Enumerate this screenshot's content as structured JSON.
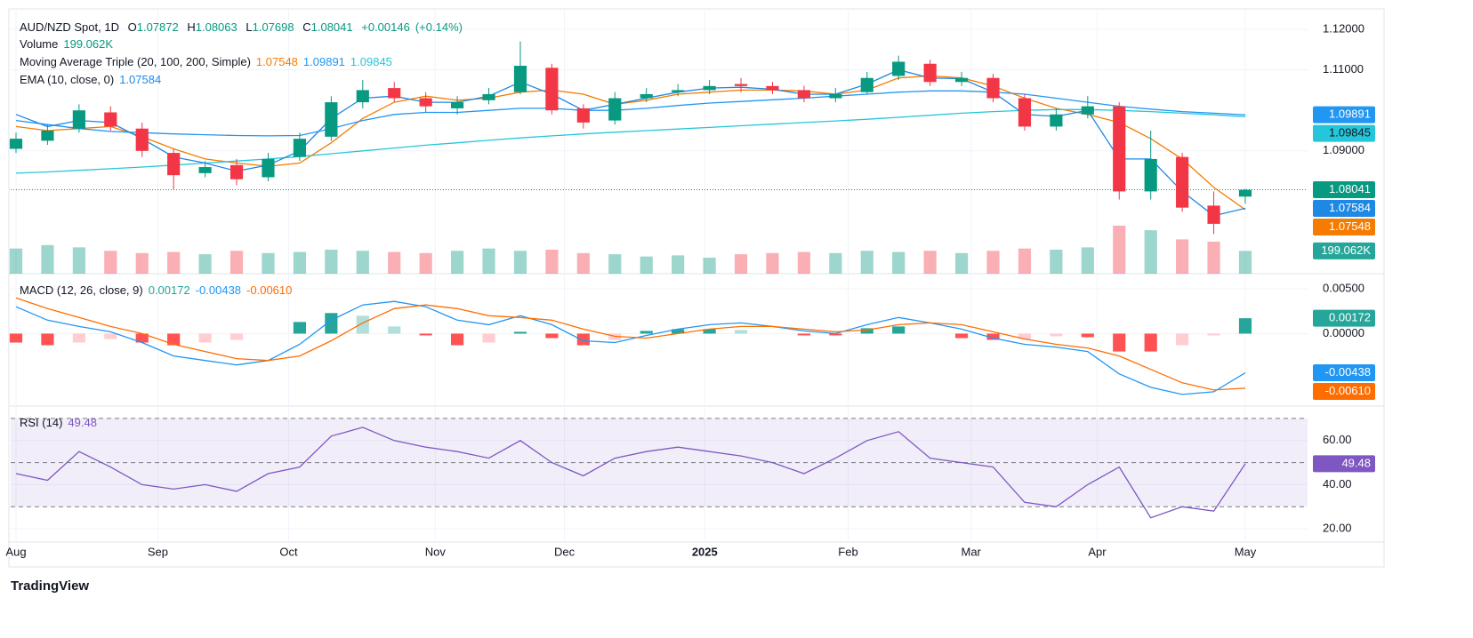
{
  "chart_data": {
    "type": "candlestick",
    "symbol": "AUD/NZD Spot, 1D",
    "ohlc_prefixes": {
      "open": "O",
      "high": "H",
      "low": "L",
      "close": "C"
    },
    "change": {
      "value": 0.00146,
      "label": "+0.00146"
    },
    "change_pct": {
      "value": 0.14,
      "label": "(+0.14%)"
    },
    "up_color": "#089981",
    "down_color": "#f23645",
    "candles": {
      "open": [
        1.0905,
        1.0925,
        1.0955,
        1.0995,
        1.0955,
        1.0895,
        1.0845,
        1.0865,
        1.0835,
        1.0885,
        1.0935,
        1.102,
        1.1055,
        1.103,
        1.1005,
        1.1025,
        1.1045,
        1.1105,
        1.1005,
        1.0975,
        1.103,
        1.1045,
        1.105,
        1.1065,
        1.106,
        1.105,
        1.103,
        1.1045,
        1.1085,
        1.1115,
        1.107,
        1.108,
        1.103,
        1.096,
        1.099,
        1.101,
        1.08,
        1.0885,
        1.0765,
        1.07872
      ],
      "high": [
        1.0945,
        1.0965,
        1.1015,
        1.101,
        1.097,
        1.0905,
        1.0875,
        1.088,
        1.0895,
        1.0945,
        1.1035,
        1.1075,
        1.107,
        1.1045,
        1.1035,
        1.1055,
        1.117,
        1.1115,
        1.1015,
        1.1045,
        1.1055,
        1.1065,
        1.1075,
        1.108,
        1.107,
        1.106,
        1.1055,
        1.1095,
        1.1135,
        1.1125,
        1.1095,
        1.109,
        1.104,
        1.1005,
        1.1035,
        1.102,
        1.095,
        1.0895,
        1.08,
        1.08063
      ],
      "low": [
        1.0895,
        1.0915,
        1.0945,
        1.095,
        1.0885,
        1.0805,
        1.0835,
        1.0815,
        1.0825,
        1.0875,
        1.0925,
        1.1005,
        1.102,
        1.0995,
        1.099,
        1.1015,
        1.104,
        1.099,
        1.0955,
        1.0965,
        1.102,
        1.1035,
        1.104,
        1.1045,
        1.104,
        1.102,
        1.102,
        1.104,
        1.1075,
        1.106,
        1.106,
        1.102,
        1.095,
        1.095,
        1.098,
        1.078,
        1.078,
        1.075,
        1.0695,
        1.07698
      ],
      "close": [
        1.093,
        1.095,
        1.1,
        1.096,
        1.09,
        1.084,
        1.086,
        1.083,
        1.088,
        1.093,
        1.102,
        1.105,
        1.103,
        1.101,
        1.102,
        1.104,
        1.111,
        1.1,
        1.097,
        1.103,
        1.104,
        1.105,
        1.106,
        1.106,
        1.105,
        1.103,
        1.104,
        1.108,
        1.112,
        1.107,
        1.108,
        1.103,
        1.096,
        1.099,
        1.101,
        1.08,
        1.088,
        1.076,
        1.072,
        1.08041
      ]
    },
    "ylim": [
      1.0597,
      1.1246
    ],
    "yticks": [
      {
        "value": 1.12,
        "label": "1.12000"
      },
      {
        "value": 1.11,
        "label": "1.11000"
      },
      {
        "value": 1.09,
        "label": "1.09000"
      }
    ],
    "xticks": [
      {
        "value": 0,
        "label": "Aug"
      },
      {
        "value": 4.5,
        "label": "Sep"
      },
      {
        "value": 8.65,
        "label": "Oct"
      },
      {
        "value": 13.3,
        "label": "Nov"
      },
      {
        "value": 17.4,
        "label": "Dec"
      },
      {
        "value": 21.85,
        "label": "2025",
        "bold": true
      },
      {
        "value": 26.4,
        "label": "Feb"
      },
      {
        "value": 30.3,
        "label": "Mar"
      },
      {
        "value": 34.3,
        "label": "Apr"
      },
      {
        "value": 39,
        "label": "May"
      }
    ],
    "grid": true,
    "volume": {
      "name": "Volume",
      "color": "#26a69a",
      "last_label": "199.062K",
      "vlim": [
        0,
        2300000
      ],
      "values": [
        220000,
        250000,
        230000,
        200000,
        180000,
        190000,
        170000,
        200000,
        180000,
        190000,
        210000,
        200000,
        190000,
        180000,
        200000,
        220000,
        200000,
        210000,
        180000,
        170000,
        150000,
        160000,
        140000,
        170000,
        180000,
        190000,
        180000,
        200000,
        190000,
        200000,
        180000,
        200000,
        220000,
        210000,
        230000,
        420000,
        380000,
        300000,
        280000,
        199062
      ]
    },
    "ma": {
      "name": "Moving Average Triple (20, 100, 200, Simple)",
      "series": [
        {
          "color": "#f57c00",
          "values": [
            1.096,
            1.095,
            1.0955,
            1.096,
            1.0935,
            1.0905,
            1.088,
            1.087,
            1.0862,
            1.087,
            1.092,
            1.098,
            1.102,
            1.1035,
            1.1025,
            1.103,
            1.1045,
            1.105,
            1.104,
            1.1015,
            1.1025,
            1.104,
            1.1045,
            1.105,
            1.105,
            1.1048,
            1.104,
            1.105,
            1.108,
            1.1085,
            1.108,
            1.106,
            1.103,
            1.1005,
            1.099,
            1.097,
            1.093,
            1.088,
            1.081,
            1.07548
          ]
        },
        {
          "color": "#2196f3",
          "values": [
            1.0975,
            1.0965,
            1.0955,
            1.0948,
            1.0945,
            1.0942,
            1.094,
            1.0938,
            1.0937,
            1.0938,
            1.0955,
            1.0975,
            1.099,
            1.0995,
            1.0995,
            1.1,
            1.1005,
            1.1005,
            1.1,
            1.1,
            1.1005,
            1.1012,
            1.1018,
            1.1022,
            1.1026,
            1.103,
            1.1035,
            1.104,
            1.1045,
            1.1048,
            1.1048,
            1.1045,
            1.104,
            1.103,
            1.102,
            1.101,
            1.1003,
            1.0997,
            1.0993,
            1.09891
          ]
        },
        {
          "color": "#26c6da",
          "values": [
            1.0845,
            1.0848,
            1.0852,
            1.0856,
            1.086,
            1.0865,
            1.087,
            1.0875,
            1.088,
            1.0886,
            1.0893,
            1.09,
            1.0907,
            1.0914,
            1.092,
            1.0926,
            1.0932,
            1.0937,
            1.0942,
            1.0946,
            1.095,
            1.0954,
            1.0958,
            1.0962,
            1.0966,
            1.097,
            1.0974,
            1.0978,
            1.0983,
            1.0988,
            1.0993,
            1.0997,
            1.1,
            1.1002,
            1.1002,
            1.1,
            1.0997,
            1.0993,
            1.0989,
            1.09845
          ]
        }
      ]
    },
    "ema": {
      "name": "EMA (10, close, 0)",
      "series": [
        {
          "color": "#1e88e5",
          "values": [
            1.099,
            1.096,
            1.0975,
            1.097,
            1.093,
            1.0885,
            1.087,
            1.085,
            1.0865,
            1.09,
            1.098,
            1.103,
            1.1035,
            1.102,
            1.102,
            1.1035,
            1.107,
            1.104,
            1.1,
            1.1015,
            1.103,
            1.1045,
            1.1055,
            1.1057,
            1.1052,
            1.104,
            1.104,
            1.1065,
            1.11,
            1.108,
            1.1078,
            1.1045,
            1.099,
            1.0985,
            1.1,
            1.088,
            1.088,
            1.08,
            1.074,
            1.07584
          ]
        }
      ]
    },
    "macd": {
      "name": "MACD (12, 26, close, 9)",
      "ylim": [
        -0.008,
        0.0065
      ],
      "yticks": [
        {
          "value": 0.005,
          "label": "0.00500"
        },
        {
          "value": 0,
          "label": "0.00000"
        }
      ],
      "histogram": {
        "color": "#26a69a",
        "colors": [
          "#26a69a",
          "#b2dfdb",
          "#ff5252",
          "#ffcdd2"
        ],
        "values": [
          -0.001,
          -0.0013,
          -0.001,
          -0.0006,
          -0.001,
          -0.0013,
          -0.001,
          -0.0007,
          0.0,
          0.0013,
          0.0023,
          0.002,
          0.0008,
          -0.0002,
          -0.0013,
          -0.001,
          0.0002,
          -0.0005,
          -0.0013,
          -0.0007,
          0.0003,
          0.0005,
          0.0005,
          0.0004,
          0.0,
          -0.0002,
          -0.0002,
          0.0006,
          0.0008,
          0.0,
          -0.0005,
          -0.0007,
          -0.0006,
          -0.0003,
          -0.0004,
          -0.002,
          -0.002,
          -0.0013,
          -0.0002,
          0.00172
        ]
      },
      "series": [
        {
          "color": "#2196f3",
          "values": [
            0.003,
            0.0015,
            0.0008,
            0.0002,
            -0.001,
            -0.0025,
            -0.003,
            -0.0035,
            -0.003,
            -0.0012,
            0.0015,
            0.0032,
            0.0036,
            0.003,
            0.0015,
            0.001,
            0.002,
            0.001,
            -0.0008,
            -0.001,
            -0.0002,
            0.0005,
            0.001,
            0.0012,
            0.0008,
            0.0003,
            0.0,
            0.001,
            0.0018,
            0.0012,
            0.0005,
            -0.0005,
            -0.0012,
            -0.0015,
            -0.002,
            -0.0045,
            -0.006,
            -0.0068,
            -0.0065,
            -0.00438
          ]
        },
        {
          "color": "#ff6d00",
          "last_label": "-0.00610",
          "values": [
            0.004,
            0.0028,
            0.0018,
            0.0008,
            0.0,
            -0.0012,
            -0.002,
            -0.0028,
            -0.003,
            -0.0025,
            -0.0008,
            0.0012,
            0.0028,
            0.0032,
            0.0028,
            0.002,
            0.0018,
            0.0015,
            0.0005,
            -0.0003,
            -0.0005,
            0.0,
            0.0005,
            0.0008,
            0.0008,
            0.0005,
            0.0002,
            0.0004,
            0.001,
            0.0012,
            0.001,
            0.0002,
            -0.0006,
            -0.0012,
            -0.0016,
            -0.0025,
            -0.004,
            -0.0055,
            -0.0063,
            -0.0061
          ]
        }
      ]
    },
    "rsi": {
      "name": "RSI (14)",
      "color": "#7e57c2",
      "ylim": [
        14,
        74.4
      ],
      "yticks": [
        {
          "value": 60,
          "label": "60.00"
        },
        {
          "value": 40,
          "label": "40.00"
        },
        {
          "value": 20,
          "label": "20.00"
        }
      ],
      "levels": [
        70,
        50,
        30
      ],
      "values": [
        45,
        42,
        55,
        48,
        40,
        38,
        40,
        37,
        45,
        48,
        62,
        66,
        60,
        57,
        55,
        52,
        60,
        50,
        44,
        52,
        55,
        57,
        55,
        53,
        50,
        45,
        52,
        60,
        64,
        52,
        50,
        48,
        32,
        30,
        40,
        48,
        25,
        30,
        28,
        49.48
      ]
    },
    "footer": "TradingView"
  }
}
